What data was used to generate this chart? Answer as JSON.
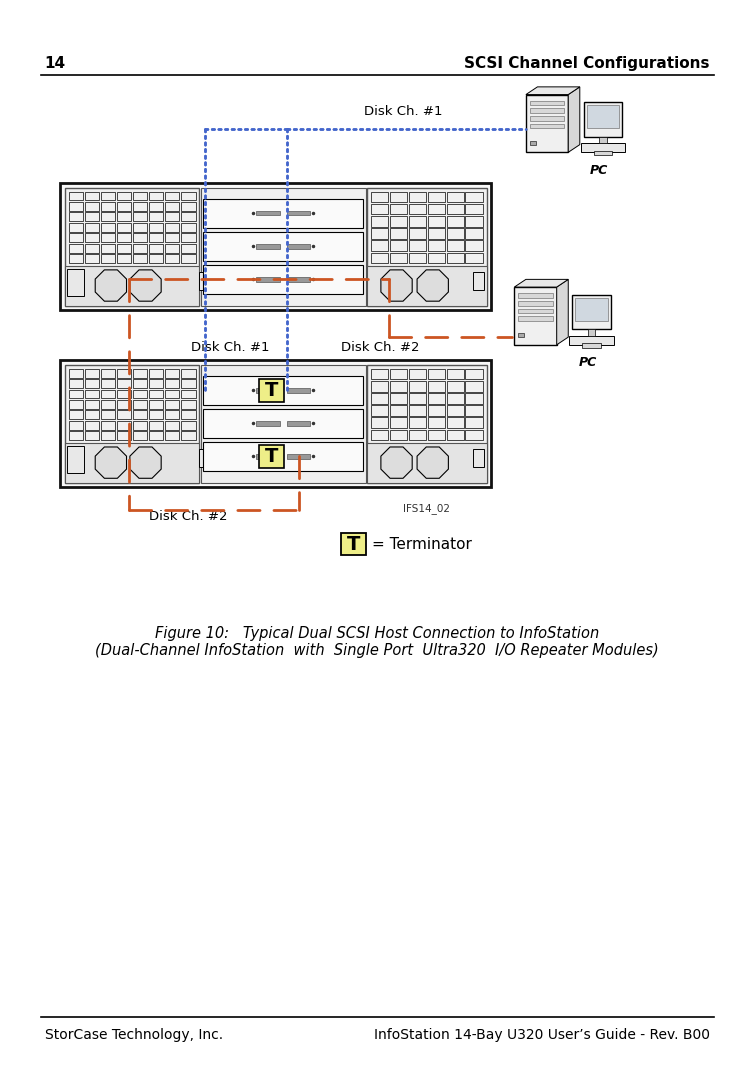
{
  "page_number": "14",
  "header_text": "SCSI Channel Configurations",
  "footer_left": "StorCase Technology, Inc.",
  "footer_right": "InfoStation 14-Bay U320 User’s Guide - Rev. B00",
  "figure_caption_line1": "Figure 10:   Typical Dual SCSI Host Connection to InfoStation",
  "figure_caption_line2": "(Dual-Channel InfoStation  with  Single Port  Ultra320  I/O Repeater Modules)",
  "label_disk_ch1_top": "Disk Ch. #1",
  "label_disk_ch1_mid": "Disk Ch. #1",
  "label_disk_ch2_mid": "Disk Ch. #2",
  "label_disk_ch2_bot": "Disk Ch. #2",
  "label_pc_top": "PC",
  "label_pc_bottom": "PC",
  "label_terminator": "= Terminator",
  "label_ifs14": "IFS14_02",
  "bg_color": "#ffffff",
  "line_color_blue": "#4466cc",
  "line_color_orange": "#cc5522",
  "terminator_bg": "#eeee88",
  "unit_outline": "#111111",
  "unit_fill": "#f8f8f8",
  "panel_fill": "#f0f0f0",
  "fan_fill": "#e4e4e4",
  "slot_fill": "#f5f5f5",
  "connector_fill": "#cccccc"
}
